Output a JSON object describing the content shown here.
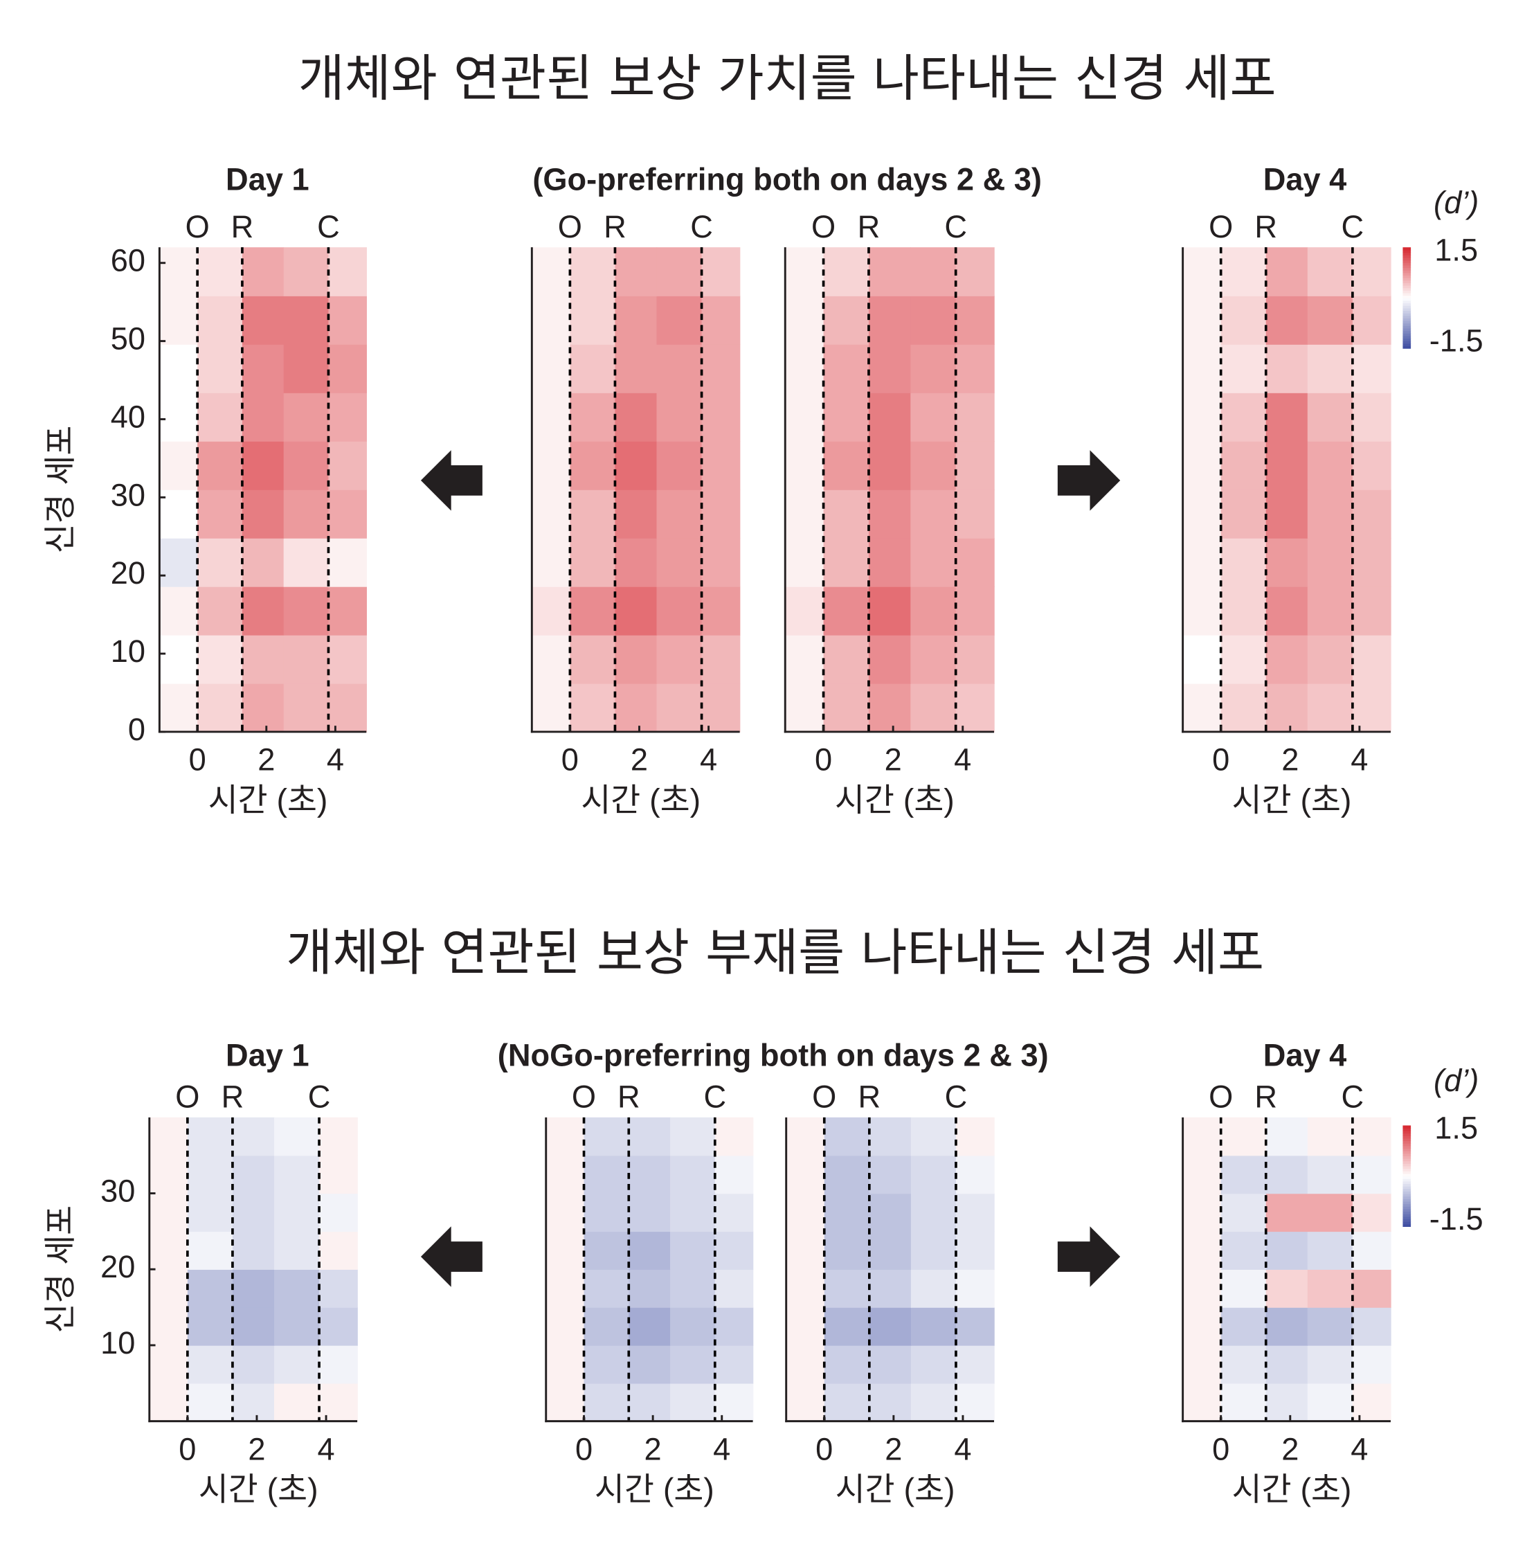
{
  "titles": [
    "개체와 연관된 보상 가치를 나타내는 신경 세포",
    "개체와 연관된 보상 부재를 나타내는 신경 세포"
  ],
  "chart_data": [
    {
      "type": "heatmap",
      "title": "Day 1",
      "ylabel": "신경 세포",
      "xlabel": "시간 (초)",
      "xlim": [
        -1.1,
        4.9
      ],
      "xticks": [
        0,
        2,
        4
      ],
      "ylim": [
        0,
        62
      ],
      "yticks": [
        0,
        10,
        20,
        30,
        40,
        50,
        60
      ],
      "events": [
        {
          "value": 0,
          "label": "O"
        },
        {
          "value": 1.3,
          "label": "R"
        },
        {
          "value": 3.8,
          "label": "C"
        }
      ],
      "x_bins": [
        -1.1,
        0,
        1.3,
        2.5,
        3.8,
        4.9
      ],
      "values": [
        [
          0.1,
          0.3,
          0.6,
          0.5,
          0.5
        ],
        [
          0,
          0.2,
          0.5,
          0.5,
          0.4
        ],
        [
          0.1,
          0.5,
          0.9,
          0.8,
          0.7
        ],
        [
          -0.2,
          0.3,
          0.5,
          0.2,
          0.1
        ],
        [
          0,
          0.6,
          0.9,
          0.7,
          0.6
        ],
        [
          0.1,
          0.7,
          1.0,
          0.8,
          0.5
        ],
        [
          0,
          0.4,
          0.8,
          0.7,
          0.6
        ],
        [
          0,
          0.3,
          0.8,
          0.9,
          0.7
        ],
        [
          0.1,
          0.3,
          0.9,
          0.9,
          0.6
        ],
        [
          0.1,
          0.2,
          0.6,
          0.5,
          0.3
        ]
      ]
    },
    {
      "type": "heatmap",
      "title": "(Go-preferring both on days 2 & 3)",
      "xlabel": "시간 (초)",
      "xlim": [
        -1.1,
        4.9
      ],
      "xticks": [
        0,
        2,
        4
      ],
      "ylim": [
        0,
        62
      ],
      "events": [
        {
          "value": 0,
          "label": "O"
        },
        {
          "value": 1.3,
          "label": "R"
        },
        {
          "value": 3.8,
          "label": "C"
        }
      ],
      "x_bins": [
        -1.1,
        0,
        1.3,
        2.5,
        3.8,
        4.9
      ],
      "values": [
        [
          0.1,
          0.4,
          0.6,
          0.5,
          0.5
        ],
        [
          0.1,
          0.5,
          0.7,
          0.6,
          0.5
        ],
        [
          0.2,
          0.8,
          1.0,
          0.8,
          0.7
        ],
        [
          0.1,
          0.5,
          0.8,
          0.7,
          0.6
        ],
        [
          0.1,
          0.5,
          0.9,
          0.7,
          0.6
        ],
        [
          0.1,
          0.7,
          1.0,
          0.8,
          0.6
        ],
        [
          0.1,
          0.6,
          0.9,
          0.7,
          0.6
        ],
        [
          0.1,
          0.4,
          0.7,
          0.7,
          0.6
        ],
        [
          0.1,
          0.3,
          0.7,
          0.8,
          0.6
        ],
        [
          0.1,
          0.3,
          0.6,
          0.6,
          0.4
        ]
      ]
    },
    {
      "type": "heatmap",
      "xlabel": "시간 (초)",
      "xlim": [
        -1.1,
        4.9
      ],
      "xticks": [
        0,
        2,
        4
      ],
      "ylim": [
        0,
        62
      ],
      "events": [
        {
          "value": 0,
          "label": "O"
        },
        {
          "value": 1.3,
          "label": "R"
        },
        {
          "value": 3.8,
          "label": "C"
        }
      ],
      "x_bins": [
        -1.1,
        0,
        1.3,
        2.5,
        3.8,
        4.9
      ],
      "values": [
        [
          0.1,
          0.5,
          0.7,
          0.5,
          0.4
        ],
        [
          0.1,
          0.5,
          0.8,
          0.6,
          0.5
        ],
        [
          0.2,
          0.8,
          1.0,
          0.7,
          0.6
        ],
        [
          0.1,
          0.5,
          0.8,
          0.6,
          0.6
        ],
        [
          0.1,
          0.5,
          0.8,
          0.6,
          0.5
        ],
        [
          0.1,
          0.7,
          0.9,
          0.7,
          0.5
        ],
        [
          0.1,
          0.6,
          0.9,
          0.6,
          0.5
        ],
        [
          0.1,
          0.6,
          0.8,
          0.7,
          0.6
        ],
        [
          0.1,
          0.5,
          0.8,
          0.8,
          0.7
        ],
        [
          0.1,
          0.3,
          0.6,
          0.6,
          0.5
        ]
      ]
    },
    {
      "type": "heatmap",
      "title": "Day 4",
      "xlabel": "시간 (초)",
      "xlim": [
        -1.1,
        4.9
      ],
      "xticks": [
        0,
        2,
        4
      ],
      "ylim": [
        0,
        62
      ],
      "events": [
        {
          "value": 0,
          "label": "O"
        },
        {
          "value": 1.3,
          "label": "R"
        },
        {
          "value": 3.8,
          "label": "C"
        }
      ],
      "x_bins": [
        -1.1,
        0,
        1.3,
        2.5,
        3.8,
        4.9
      ],
      "values": [
        [
          0.1,
          0.3,
          0.5,
          0.4,
          0.3
        ],
        [
          0,
          0.2,
          0.6,
          0.5,
          0.3
        ],
        [
          0.1,
          0.3,
          0.8,
          0.6,
          0.5
        ],
        [
          0.1,
          0.3,
          0.7,
          0.6,
          0.5
        ],
        [
          0.1,
          0.5,
          0.9,
          0.6,
          0.5
        ],
        [
          0.1,
          0.5,
          0.9,
          0.6,
          0.4
        ],
        [
          0.1,
          0.4,
          0.9,
          0.5,
          0.3
        ],
        [
          0.1,
          0.2,
          0.4,
          0.3,
          0.2
        ],
        [
          0.1,
          0.3,
          0.8,
          0.7,
          0.4
        ],
        [
          0.1,
          0.2,
          0.6,
          0.4,
          0.3
        ]
      ],
      "colorbar": {
        "label": "(d’)",
        "lim": [
          -1.5,
          1.5
        ],
        "ticks": [
          1.5,
          -1.5
        ]
      }
    },
    {
      "type": "heatmap",
      "title": "Day 1",
      "ylabel": "신경 세포",
      "xlabel": "시간 (초)",
      "xlim": [
        -1.1,
        4.9
      ],
      "xticks": [
        0,
        2,
        4
      ],
      "ylim": [
        0,
        40
      ],
      "yticks": [
        10,
        20,
        30
      ],
      "events": [
        {
          "value": 0,
          "label": "O"
        },
        {
          "value": 1.3,
          "label": "R"
        },
        {
          "value": 3.8,
          "label": "C"
        }
      ],
      "x_bins": [
        -1.1,
        0,
        1.3,
        2.5,
        3.8,
        4.9
      ],
      "values": [
        [
          0.1,
          -0.1,
          -0.2,
          0.1,
          0.1
        ],
        [
          0.1,
          -0.2,
          -0.3,
          -0.2,
          -0.1
        ],
        [
          0.1,
          -0.5,
          -0.6,
          -0.5,
          -0.4
        ],
        [
          0.1,
          -0.5,
          -0.6,
          -0.5,
          -0.3
        ],
        [
          0.1,
          -0.1,
          -0.3,
          -0.2,
          0.1
        ],
        [
          0.1,
          -0.2,
          -0.3,
          -0.2,
          -0.1
        ],
        [
          0.1,
          -0.2,
          -0.3,
          -0.2,
          0.1
        ],
        [
          0.1,
          -0.2,
          -0.2,
          -0.1,
          0.1
        ]
      ]
    },
    {
      "type": "heatmap",
      "title": "(NoGo-preferring both on days 2 & 3)",
      "xlabel": "시간 (초)",
      "xlim": [
        -1.1,
        4.9
      ],
      "xticks": [
        0,
        2,
        4
      ],
      "ylim": [
        0,
        40
      ],
      "events": [
        {
          "value": 0,
          "label": "O"
        },
        {
          "value": 1.3,
          "label": "R"
        },
        {
          "value": 3.8,
          "label": "C"
        }
      ],
      "x_bins": [
        -1.1,
        0,
        1.3,
        2.5,
        3.8,
        4.9
      ],
      "values": [
        [
          0.1,
          -0.3,
          -0.3,
          -0.2,
          -0.1
        ],
        [
          0.1,
          -0.4,
          -0.5,
          -0.4,
          -0.3
        ],
        [
          0.1,
          -0.5,
          -0.7,
          -0.5,
          -0.4
        ],
        [
          0.1,
          -0.4,
          -0.5,
          -0.4,
          -0.2
        ],
        [
          0.1,
          -0.5,
          -0.6,
          -0.4,
          -0.3
        ],
        [
          0.1,
          -0.4,
          -0.4,
          -0.3,
          -0.2
        ],
        [
          0.1,
          -0.4,
          -0.4,
          -0.3,
          -0.1
        ],
        [
          0.1,
          -0.3,
          -0.3,
          -0.2,
          0.1
        ]
      ]
    },
    {
      "type": "heatmap",
      "xlabel": "시간 (초)",
      "xlim": [
        -1.1,
        4.9
      ],
      "xticks": [
        0,
        2,
        4
      ],
      "ylim": [
        0,
        40
      ],
      "events": [
        {
          "value": 0,
          "label": "O"
        },
        {
          "value": 1.3,
          "label": "R"
        },
        {
          "value": 3.8,
          "label": "C"
        }
      ],
      "x_bins": [
        -1.1,
        0,
        1.3,
        2.5,
        3.8,
        4.9
      ],
      "values": [
        [
          0.1,
          -0.3,
          -0.3,
          -0.2,
          -0.1
        ],
        [
          0.1,
          -0.4,
          -0.4,
          -0.3,
          -0.2
        ],
        [
          0.1,
          -0.6,
          -0.7,
          -0.6,
          -0.5
        ],
        [
          0.1,
          -0.4,
          -0.4,
          -0.2,
          -0.1
        ],
        [
          0.1,
          -0.5,
          -0.5,
          -0.3,
          -0.2
        ],
        [
          0.1,
          -0.5,
          -0.5,
          -0.3,
          -0.2
        ],
        [
          0.1,
          -0.5,
          -0.4,
          -0.3,
          -0.1
        ],
        [
          0.1,
          -0.4,
          -0.3,
          -0.2,
          0.1
        ]
      ]
    },
    {
      "type": "heatmap",
      "title": "Day 4",
      "xlabel": "시간 (초)",
      "xlim": [
        -1.1,
        4.9
      ],
      "xticks": [
        0,
        2,
        4
      ],
      "ylim": [
        0,
        40
      ],
      "events": [
        {
          "value": 0,
          "label": "O"
        },
        {
          "value": 1.3,
          "label": "R"
        },
        {
          "value": 3.8,
          "label": "C"
        }
      ],
      "x_bins": [
        -1.1,
        0,
        1.3,
        2.5,
        3.8,
        4.9
      ],
      "values": [
        [
          0.1,
          -0.1,
          -0.2,
          -0.1,
          0.1
        ],
        [
          0.1,
          -0.2,
          -0.3,
          -0.2,
          -0.1
        ],
        [
          0.1,
          -0.4,
          -0.6,
          -0.5,
          -0.3
        ],
        [
          0.1,
          -0.1,
          0.3,
          0.4,
          0.5
        ],
        [
          0.1,
          -0.3,
          -0.4,
          -0.3,
          -0.1
        ],
        [
          0.1,
          -0.2,
          0.6,
          0.6,
          0.2
        ],
        [
          0.1,
          -0.3,
          -0.3,
          -0.2,
          -0.1
        ],
        [
          0.1,
          0.1,
          -0.1,
          0.1,
          0.1
        ]
      ],
      "colorbar": {
        "label": "(d’)",
        "lim": [
          -1.5,
          1.5
        ],
        "ticks": [
          1.5,
          -1.5
        ]
      }
    }
  ]
}
